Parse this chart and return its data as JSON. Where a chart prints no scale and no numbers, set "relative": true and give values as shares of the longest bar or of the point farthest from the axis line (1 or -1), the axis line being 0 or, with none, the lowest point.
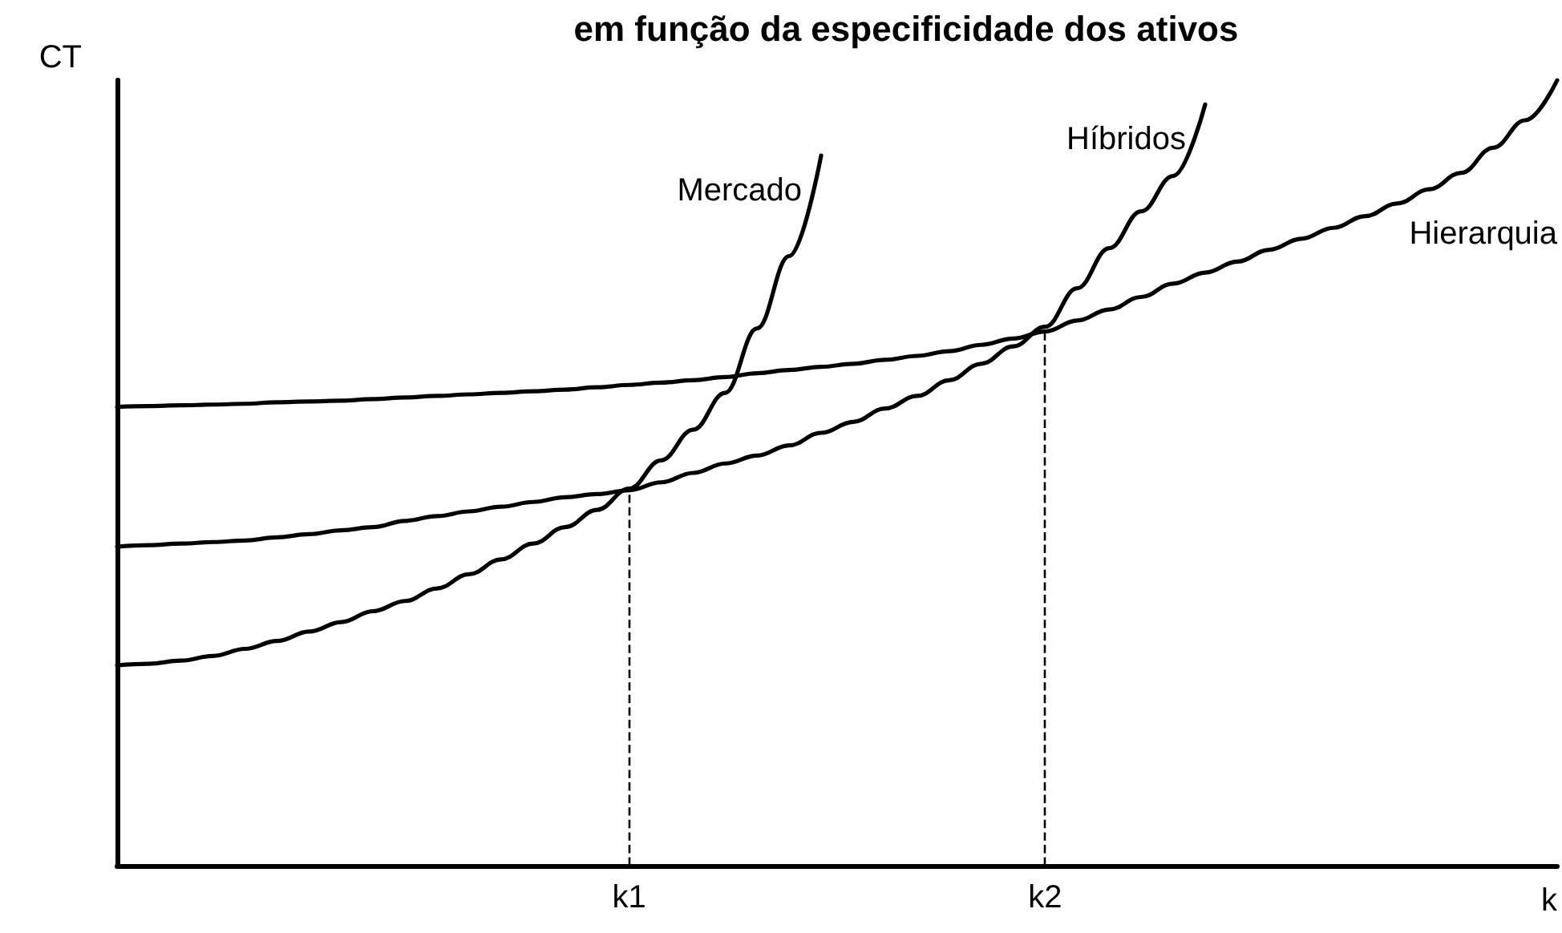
{
  "chart_data": {
    "type": "line",
    "title": "em função da especificidade dos ativos",
    "xlabel": "k",
    "ylabel": "CT",
    "relative": true,
    "categories": [
      null,
      null,
      null,
      null,
      null,
      null,
      null,
      null,
      null,
      null,
      null,
      null,
      null,
      null,
      null,
      null,
      "k1",
      null,
      null,
      null,
      null,
      null,
      null,
      null,
      null,
      null,
      null,
      null,
      null,
      "k2",
      null,
      null,
      null,
      null,
      null,
      null,
      null,
      null,
      null,
      null,
      null,
      null,
      null,
      null,
      null,
      null
    ],
    "series": [
      {
        "name": "Mercado",
        "color": "#000000",
        "values": [
          0.255,
          0.257,
          0.261,
          0.267,
          0.276,
          0.286,
          0.298,
          0.31,
          0.324,
          0.337,
          0.353,
          0.371,
          0.39,
          0.41,
          0.431,
          0.453,
          0.48,
          0.516,
          0.555,
          0.602,
          0.684,
          0.776,
          0.904,
          null,
          null,
          null,
          null,
          null,
          null,
          null,
          null,
          null,
          null,
          null,
          null,
          null,
          null,
          null,
          null,
          null,
          null,
          null,
          null,
          null,
          null,
          null
        ]
      },
      {
        "name": "Híbridos",
        "color": "#000000",
        "values": [
          0.406,
          0.408,
          0.41,
          0.412,
          0.414,
          0.418,
          0.422,
          0.427,
          0.431,
          0.439,
          0.445,
          0.451,
          0.457,
          0.463,
          0.469,
          0.473,
          0.478,
          0.488,
          0.5,
          0.512,
          0.522,
          0.535,
          0.551,
          0.565,
          0.582,
          0.598,
          0.618,
          0.639,
          0.661,
          0.686,
          0.735,
          0.786,
          0.833,
          0.878,
          0.969,
          null,
          null,
          null,
          null,
          null,
          null,
          null,
          null,
          null,
          null,
          null
        ]
      },
      {
        "name": "Hierarquia",
        "color": "#000000",
        "values": [
          0.584,
          0.585,
          0.586,
          0.587,
          0.588,
          0.59,
          0.591,
          0.592,
          0.594,
          0.596,
          0.598,
          0.6,
          0.602,
          0.604,
          0.606,
          0.609,
          0.612,
          0.615,
          0.618,
          0.622,
          0.627,
          0.631,
          0.635,
          0.639,
          0.644,
          0.649,
          0.655,
          0.663,
          0.671,
          0.68,
          0.694,
          0.708,
          0.724,
          0.741,
          0.755,
          0.769,
          0.784,
          0.798,
          0.812,
          0.827,
          0.843,
          0.861,
          0.882,
          0.914,
          0.949,
          1
        ]
      }
    ],
    "ref_lines": [
      {
        "axis": "x",
        "value": "k1",
        "line_style": "dashed",
        "color": "#000000"
      },
      {
        "axis": "x",
        "value": "k2",
        "line_style": "dashed",
        "color": "#000000"
      }
    ]
  }
}
